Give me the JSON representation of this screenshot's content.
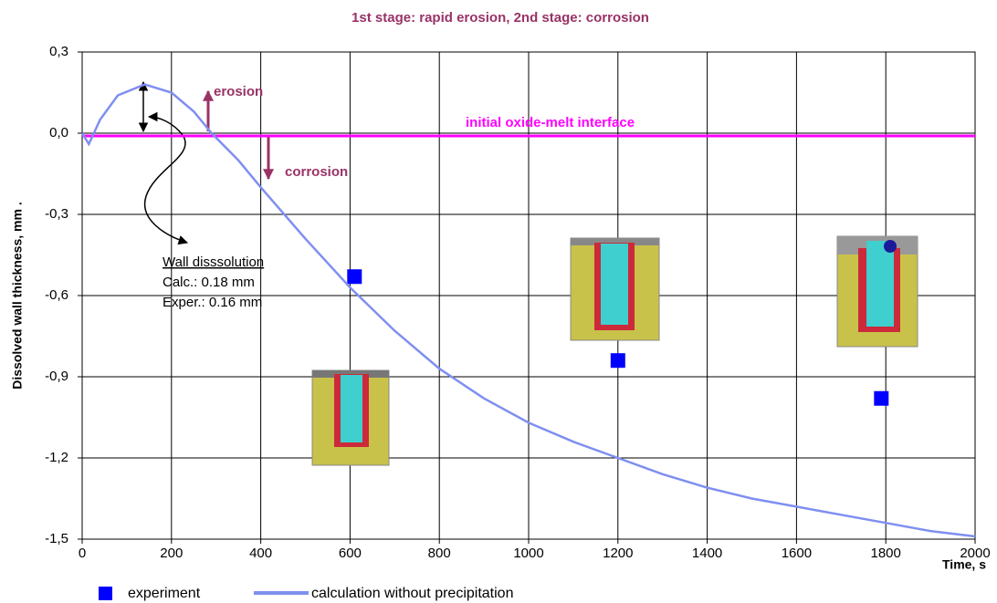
{
  "chart_data": {
    "type": "line",
    "title": "1st stage: rapid erosion,    2nd stage: corrosion",
    "y_label": "Dissolved wall thickness, mm    .",
    "x_label": "Time, s",
    "xlim": [
      0,
      2000
    ],
    "xticks": [
      0,
      200,
      400,
      600,
      800,
      1000,
      1200,
      1400,
      1600,
      1800,
      2000
    ],
    "ylim": [
      -1.5,
      0.3
    ],
    "yticks": [
      {
        "value": 0.3,
        "label": "0,3"
      },
      {
        "value": 0,
        "label": "0,0"
      },
      {
        "value": -0.3,
        "label": "-0,3"
      },
      {
        "value": -0.6,
        "label": "-0,6"
      },
      {
        "value": -0.9,
        "label": "-0,9"
      },
      {
        "value": -1.2,
        "label": "-1,2"
      },
      {
        "value": -1.5,
        "label": "-1,5"
      }
    ],
    "grid": true,
    "series": [
      {
        "name": "experiment",
        "type": "scatter",
        "color": "#0000ff",
        "x": [
          610,
          1200,
          1790
        ],
        "values": [
          -0.53,
          -0.84,
          -0.98
        ]
      },
      {
        "name": "calculation without precipitation",
        "type": "line",
        "color": "#7f8ff0",
        "x": [
          0,
          15,
          40,
          80,
          140,
          200,
          250,
          290,
          350,
          400,
          500,
          600,
          700,
          800,
          900,
          1000,
          1100,
          1200,
          1300,
          1400,
          1500,
          1600,
          1700,
          1800,
          1900,
          2000
        ],
        "values": [
          0,
          -0.04,
          0.05,
          0.14,
          0.18,
          0.15,
          0.08,
          0,
          -0.1,
          -0.2,
          -0.39,
          -0.57,
          -0.73,
          -0.87,
          -0.98,
          -1.07,
          -1.14,
          -1.2,
          -1.26,
          -1.31,
          -1.35,
          -1.38,
          -1.41,
          -1.44,
          -1.47,
          -1.49
        ]
      }
    ],
    "reference_line": {
      "label": "initial oxide-melt interface",
      "value": -0.01,
      "color": "#ff00ff"
    },
    "annotations": {
      "erosion": "erosion",
      "corrosion": "corrosion",
      "wall_title": "Wall disssolution",
      "calc": "Calc.: 0.18 mm",
      "exper": "Exper.: 0.16 mm"
    },
    "legend": "bottom"
  }
}
